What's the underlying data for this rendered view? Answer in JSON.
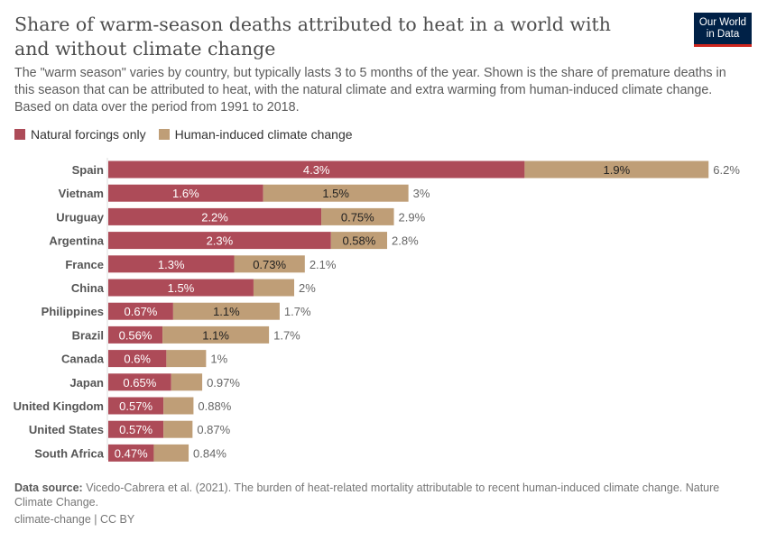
{
  "header": {
    "title": "Share of warm-season deaths attributed to heat in a world with and without climate change",
    "subtitle": "The \"warm season\" varies by country, but typically lasts 3 to 5 months of the year. Shown is the share of premature deaths in this season that can be attributed to heat, with the natural climate and extra warming from human-induced climate change. Based on data over the period from 1991 to 2018.",
    "logo": "Our World in Data"
  },
  "footer": {
    "source_label": "Data source:",
    "source_text": "Vicedo-Cabrera et al. (2021). The burden of heat-related mortality attributable to recent human-induced climate change. Nature Climate Change.",
    "license": "climate-change | CC BY"
  },
  "chart_data": {
    "type": "bar",
    "orientation": "horizontal",
    "stacked": true,
    "legend_position": "top-left",
    "categories": [
      "Spain",
      "Vietnam",
      "Uruguay",
      "Argentina",
      "France",
      "China",
      "Philippines",
      "Brazil",
      "Canada",
      "Japan",
      "United Kingdom",
      "United States",
      "South Africa"
    ],
    "series": [
      {
        "name": "Natural forcings only",
        "color": "#ad4b58",
        "values": [
          4.3,
          1.6,
          2.2,
          2.3,
          1.3,
          1.5,
          0.67,
          0.56,
          0.6,
          0.65,
          0.57,
          0.57,
          0.47
        ],
        "labels": [
          "4.3%",
          "1.6%",
          "2.2%",
          "2.3%",
          "1.3%",
          "1.5%",
          "0.67%",
          "0.56%",
          "0.6%",
          "0.65%",
          "0.57%",
          "0.57%",
          "0.47%"
        ]
      },
      {
        "name": "Human-induced climate change",
        "color": "#bf9e77",
        "values": [
          1.9,
          1.5,
          0.75,
          0.58,
          0.73,
          0.42,
          1.1,
          1.1,
          0.41,
          0.32,
          0.31,
          0.3,
          0.36
        ],
        "labels": [
          "1.9%",
          "1.5%",
          "0.75%",
          "0.58%",
          "0.73%",
          "",
          "1.1%",
          "1.1%",
          "",
          "",
          "",
          "",
          ""
        ]
      }
    ],
    "totals": [
      "6.2%",
      "3%",
      "2.9%",
      "2.8%",
      "2.1%",
      "2%",
      "1.7%",
      "1.7%",
      "1%",
      "0.97%",
      "0.88%",
      "0.87%",
      "0.84%"
    ]
  }
}
